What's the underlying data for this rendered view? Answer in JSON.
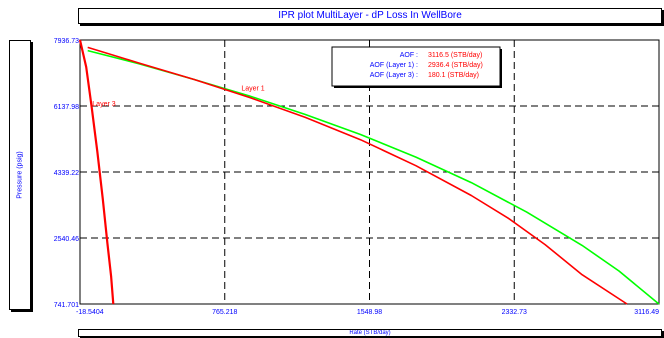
{
  "chart_data": {
    "type": "line",
    "title": "IPR plot  MultiLayer - dP Loss In WellBore",
    "xlabel": "Rate  (STB/day)",
    "ylabel": "Pressure  (psig)",
    "xlim": [
      -18.5404,
      3116.49
    ],
    "ylim": [
      741.701,
      7936.73
    ],
    "x_ticks": [
      "-18.5404",
      "765.218",
      "1548.98",
      "2332.73",
      "3116.49"
    ],
    "y_ticks": [
      "7936.73",
      "6137.98",
      "4339.22",
      "2540.46",
      "741.701"
    ],
    "grid": true,
    "series": [
      {
        "color": "#00ff00",
        "points": [
          [
            23,
            7649
          ],
          [
            300,
            7290
          ],
          [
            600,
            6860
          ],
          [
            900,
            6410
          ],
          [
            1200,
            5910
          ],
          [
            1500,
            5360
          ],
          [
            1800,
            4745
          ],
          [
            2100,
            4050
          ],
          [
            2400,
            3245
          ],
          [
            2700,
            2340
          ],
          [
            2900,
            1640
          ],
          [
            3116,
            741
          ]
        ]
      },
      {
        "color": "#ff0000",
        "points": [
          [
            23,
            7735
          ],
          [
            300,
            7310
          ],
          [
            600,
            6860
          ],
          [
            900,
            6370
          ],
          [
            1200,
            5830
          ],
          [
            1500,
            5220
          ],
          [
            1800,
            4510
          ],
          [
            2100,
            3700
          ],
          [
            2300,
            3080
          ],
          [
            2500,
            2360
          ],
          [
            2700,
            1540
          ],
          [
            2943,
            741
          ]
        ]
      },
      {
        "color": "#ff0000",
        "points": [
          [
            -18.54,
            7936.73
          ],
          [
            15,
            7200
          ],
          [
            45,
            6100
          ],
          [
            75,
            4900
          ],
          [
            105,
            3600
          ],
          [
            130,
            2400
          ],
          [
            150,
            1500
          ],
          [
            162,
            741
          ]
        ]
      }
    ],
    "annotations": [
      {
        "text": "Layer 1",
        "x": 855,
        "y": 6560
      },
      {
        "text": "Layer 3",
        "x": 48,
        "y": 6140
      }
    ],
    "aof_box": [
      {
        "label": "AOF :",
        "value": "3116.5 (STB/day)"
      },
      {
        "label": "AOF (Layer 1) :",
        "value": "2936.4 (STB/day)"
      },
      {
        "label": "AOF (Layer 3) :",
        "value": "180.1 (STB/day)"
      }
    ]
  }
}
